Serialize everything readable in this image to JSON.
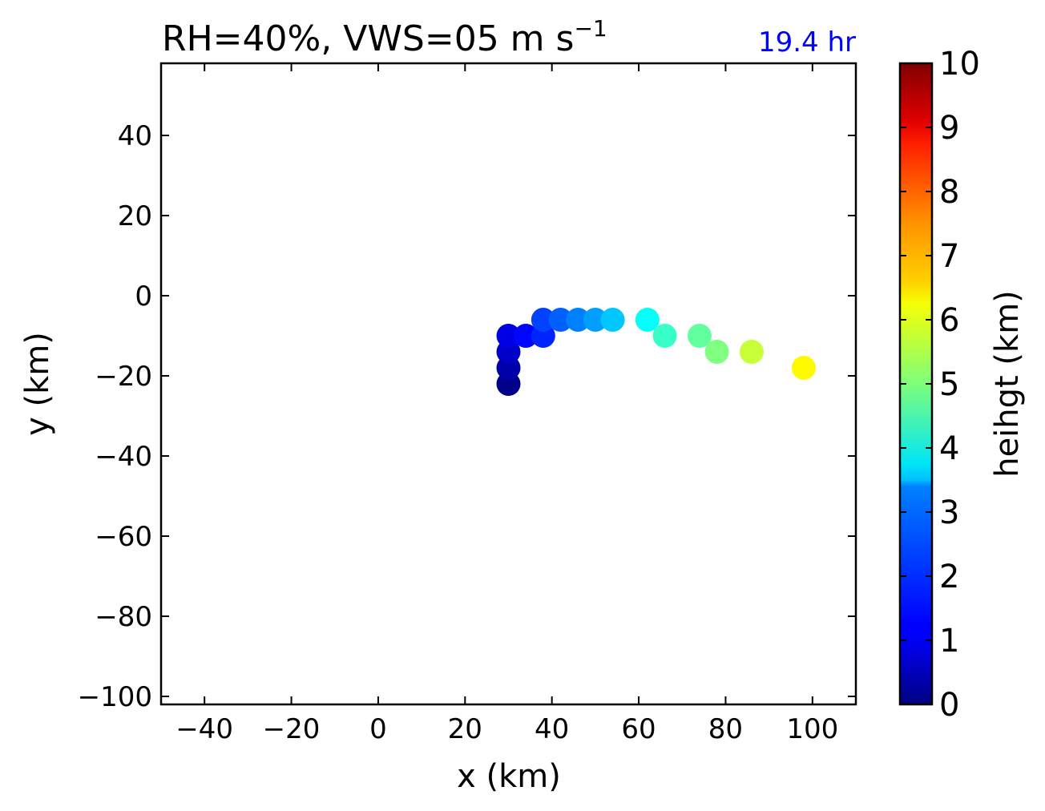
{
  "chart_data": {
    "type": "scatter",
    "title": "RH=40%, VWS=05 m s",
    "title_superscript": "−1",
    "time_label": "19.4 hr",
    "time_label_color": "#0000ff",
    "xlabel": "x (km)",
    "ylabel": "y (km)",
    "xlim": [
      -50,
      110
    ],
    "ylim": [
      -102,
      58
    ],
    "xticks": [
      -40,
      -20,
      0,
      20,
      40,
      60,
      80,
      100
    ],
    "yticks": [
      -100,
      -80,
      -60,
      -40,
      -20,
      0,
      20,
      40
    ],
    "grid": false,
    "colormap": "jet",
    "colorbar": {
      "label": "heihgt (km)",
      "range": [
        0,
        10
      ],
      "ticks": [
        0,
        1,
        2,
        3,
        4,
        5,
        6,
        7,
        8,
        9,
        10
      ]
    },
    "points": [
      {
        "x": 30,
        "y": -22,
        "height": 0.1
      },
      {
        "x": 30,
        "y": -18,
        "height": 0.4
      },
      {
        "x": 30,
        "y": -14,
        "height": 0.7
      },
      {
        "x": 30,
        "y": -10,
        "height": 1.0
      },
      {
        "x": 34,
        "y": -10,
        "height": 1.3
      },
      {
        "x": 38,
        "y": -10,
        "height": 1.6
      },
      {
        "x": 38,
        "y": -6,
        "height": 1.9
      },
      {
        "x": 42,
        "y": -6,
        "height": 2.2
      },
      {
        "x": 46,
        "y": -6,
        "height": 2.5
      },
      {
        "x": 50,
        "y": -6,
        "height": 2.8
      },
      {
        "x": 54,
        "y": -6,
        "height": 3.2
      },
      {
        "x": 62,
        "y": -6,
        "height": 3.8
      },
      {
        "x": 66,
        "y": -10,
        "height": 4.3
      },
      {
        "x": 74,
        "y": -10,
        "height": 4.7
      },
      {
        "x": 78,
        "y": -14,
        "height": 5.0
      },
      {
        "x": 86,
        "y": -14,
        "height": 5.7
      },
      {
        "x": 98,
        "y": -18,
        "height": 6.3
      }
    ]
  }
}
